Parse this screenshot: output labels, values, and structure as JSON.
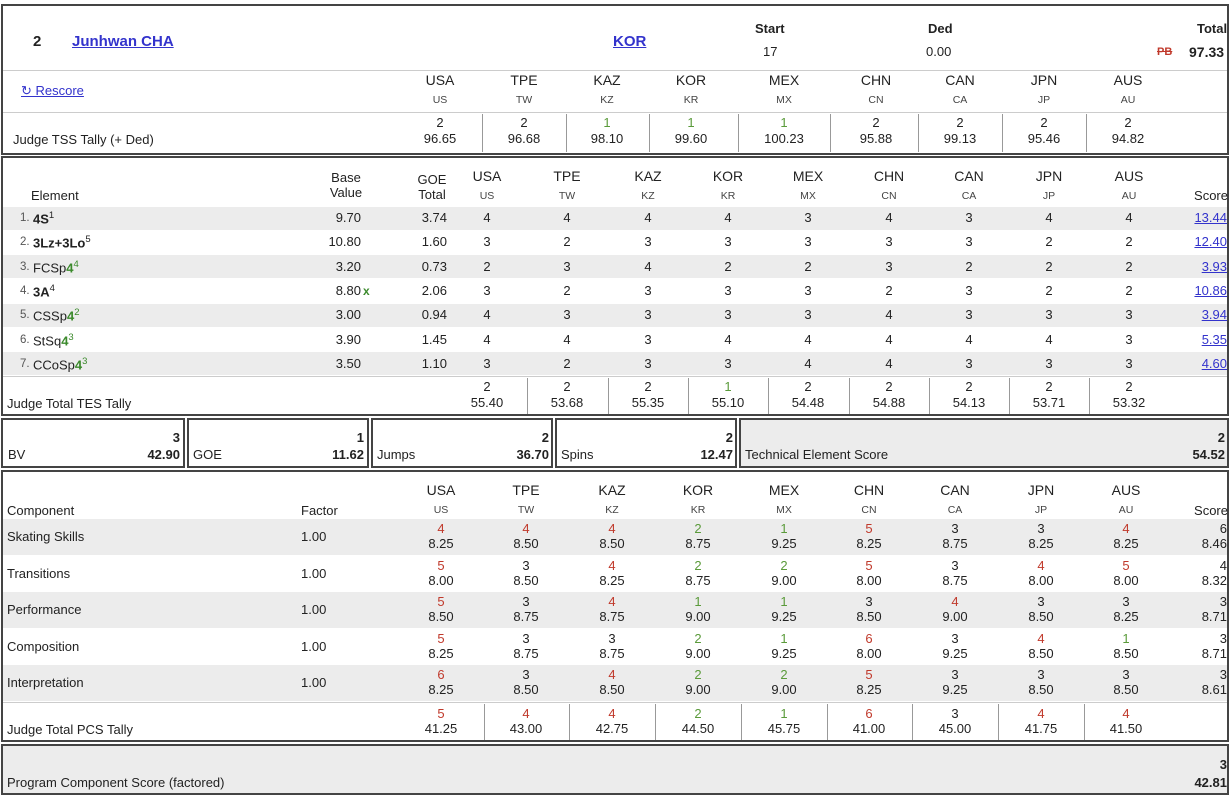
{
  "skater": {
    "rank": "2",
    "name": "Junhwan CHA",
    "nation": "KOR",
    "start_label": "Start",
    "start_value": "17",
    "ded_label": "Ded",
    "ded_value": "0.00",
    "total_label": "Total",
    "pb_label": "PB",
    "total_value": "97.33",
    "rescore_label": "↻ Rescore"
  },
  "judges": [
    {
      "country": "USA",
      "code": "US"
    },
    {
      "country": "TPE",
      "code": "TW"
    },
    {
      "country": "KAZ",
      "code": "KZ"
    },
    {
      "country": "KOR",
      "code": "KR"
    },
    {
      "country": "MEX",
      "code": "MX"
    },
    {
      "country": "CHN",
      "code": "CN"
    },
    {
      "country": "CAN",
      "code": "CA"
    },
    {
      "country": "JPN",
      "code": "JP"
    },
    {
      "country": "AUS",
      "code": "AU"
    }
  ],
  "tss_tally": {
    "label": "Judge TSS Tally (+ Ded)",
    "ranks": [
      "2",
      "2",
      "1",
      "1",
      "1",
      "2",
      "2",
      "2",
      "2"
    ],
    "values": [
      "96.65",
      "96.68",
      "98.10",
      "99.60",
      "100.23",
      "95.88",
      "99.13",
      "95.46",
      "94.82"
    ]
  },
  "elements_header": {
    "element": "Element",
    "base_value_1": "Base",
    "base_value_2": "Value",
    "goe_1": "GOE",
    "goe_2": "Total",
    "score": "Score"
  },
  "elements": [
    {
      "num": "1.",
      "name": "4S",
      "sup": "1",
      "level": "",
      "base": "9.70",
      "x": "",
      "goe": "3.74",
      "judges": [
        "4",
        "4",
        "4",
        "4",
        "3",
        "4",
        "3",
        "4",
        "4"
      ],
      "score": "13.44"
    },
    {
      "num": "2.",
      "name": "3Lz+3Lo",
      "sup": "5",
      "level": "",
      "base": "10.80",
      "x": "",
      "goe": "1.60",
      "judges": [
        "3",
        "2",
        "3",
        "3",
        "3",
        "3",
        "3",
        "2",
        "2"
      ],
      "score": "12.40"
    },
    {
      "num": "3.",
      "name": "FCSp",
      "sup": "4",
      "level": "4",
      "base": "3.20",
      "x": "",
      "goe": "0.73",
      "judges": [
        "2",
        "3",
        "4",
        "2",
        "2",
        "3",
        "2",
        "2",
        "2"
      ],
      "score": "3.93"
    },
    {
      "num": "4.",
      "name": "3A",
      "sup": "4",
      "level": "",
      "base": "8.80",
      "x": "x",
      "goe": "2.06",
      "judges": [
        "3",
        "2",
        "3",
        "3",
        "3",
        "2",
        "3",
        "2",
        "2"
      ],
      "score": "10.86"
    },
    {
      "num": "5.",
      "name": "CSSp",
      "sup": "2",
      "level": "4",
      "base": "3.00",
      "x": "",
      "goe": "0.94",
      "judges": [
        "4",
        "3",
        "3",
        "3",
        "3",
        "4",
        "3",
        "3",
        "3"
      ],
      "score": "3.94"
    },
    {
      "num": "6.",
      "name": "StSq",
      "sup": "3",
      "level": "4",
      "base": "3.90",
      "x": "",
      "goe": "1.45",
      "judges": [
        "4",
        "4",
        "3",
        "4",
        "4",
        "4",
        "4",
        "4",
        "3"
      ],
      "score": "5.35"
    },
    {
      "num": "7.",
      "name": "CCoSp",
      "sup": "3",
      "level": "4",
      "base": "3.50",
      "x": "",
      "goe": "1.10",
      "judges": [
        "3",
        "2",
        "3",
        "3",
        "4",
        "4",
        "3",
        "3",
        "3"
      ],
      "score": "4.60"
    }
  ],
  "tes_tally": {
    "label": "Judge Total TES Tally",
    "ranks": [
      "2",
      "2",
      "2",
      "1",
      "2",
      "2",
      "2",
      "2",
      "2"
    ],
    "values": [
      "55.40",
      "53.68",
      "55.35",
      "55.10",
      "54.48",
      "54.88",
      "54.13",
      "53.71",
      "53.32"
    ]
  },
  "summary": {
    "bv_label": "BV",
    "bv_rank": "3",
    "bv_value": "42.90",
    "goe_label": "GOE",
    "goe_rank": "1",
    "goe_value": "11.62",
    "jumps_label": "Jumps",
    "jumps_rank": "2",
    "jumps_value": "36.70",
    "spins_label": "Spins",
    "spins_rank": "2",
    "spins_value": "12.47",
    "tes_label": "Technical Element Score",
    "tes_rank": "2",
    "tes_value": "54.52"
  },
  "components_header": {
    "component": "Component",
    "factor": "Factor",
    "score": "Score"
  },
  "components": [
    {
      "name": "Skating Skills",
      "factor": "1.00",
      "ranks": [
        "4",
        "4",
        "4",
        "2",
        "1",
        "5",
        "3",
        "3",
        "4"
      ],
      "values": [
        "8.25",
        "8.50",
        "8.50",
        "8.75",
        "9.25",
        "8.25",
        "8.75",
        "8.25",
        "8.25"
      ],
      "score_rank": "6",
      "score": "8.46"
    },
    {
      "name": "Transitions",
      "factor": "1.00",
      "ranks": [
        "5",
        "3",
        "4",
        "2",
        "2",
        "5",
        "3",
        "4",
        "5"
      ],
      "values": [
        "8.00",
        "8.50",
        "8.25",
        "8.75",
        "9.00",
        "8.00",
        "8.75",
        "8.00",
        "8.00"
      ],
      "score_rank": "4",
      "score": "8.32"
    },
    {
      "name": "Performance",
      "factor": "1.00",
      "ranks": [
        "5",
        "3",
        "4",
        "1",
        "1",
        "3",
        "4",
        "3",
        "3"
      ],
      "values": [
        "8.50",
        "8.75",
        "8.75",
        "9.00",
        "9.25",
        "8.50",
        "9.00",
        "8.50",
        "8.25"
      ],
      "score_rank": "3",
      "score": "8.71"
    },
    {
      "name": "Composition",
      "factor": "1.00",
      "ranks": [
        "5",
        "3",
        "3",
        "2",
        "1",
        "6",
        "3",
        "4",
        "1"
      ],
      "values": [
        "8.25",
        "8.75",
        "8.75",
        "9.00",
        "9.25",
        "8.00",
        "9.25",
        "8.50",
        "8.50"
      ],
      "score_rank": "3",
      "score": "8.71"
    },
    {
      "name": "Interpretation",
      "factor": "1.00",
      "ranks": [
        "6",
        "3",
        "4",
        "2",
        "2",
        "5",
        "3",
        "3",
        "3"
      ],
      "values": [
        "8.25",
        "8.50",
        "8.50",
        "9.00",
        "9.00",
        "8.25",
        "9.25",
        "8.50",
        "8.50"
      ],
      "score_rank": "3",
      "score": "8.61"
    }
  ],
  "pcs_tally": {
    "label": "Judge Total PCS Tally",
    "ranks": [
      "5",
      "4",
      "4",
      "2",
      "1",
      "6",
      "3",
      "4",
      "4"
    ],
    "values": [
      "41.25",
      "43.00",
      "42.75",
      "44.50",
      "45.75",
      "41.00",
      "45.00",
      "41.75",
      "41.50"
    ]
  },
  "pcs_total": {
    "label": "Program Component Score (factored)",
    "rank": "3",
    "value": "42.81"
  },
  "colors": {
    "good": "#3b8a2c",
    "bad": "#c0392b",
    "neutral": "#222222",
    "link": "#3333cc",
    "stripe": "#ececec"
  }
}
